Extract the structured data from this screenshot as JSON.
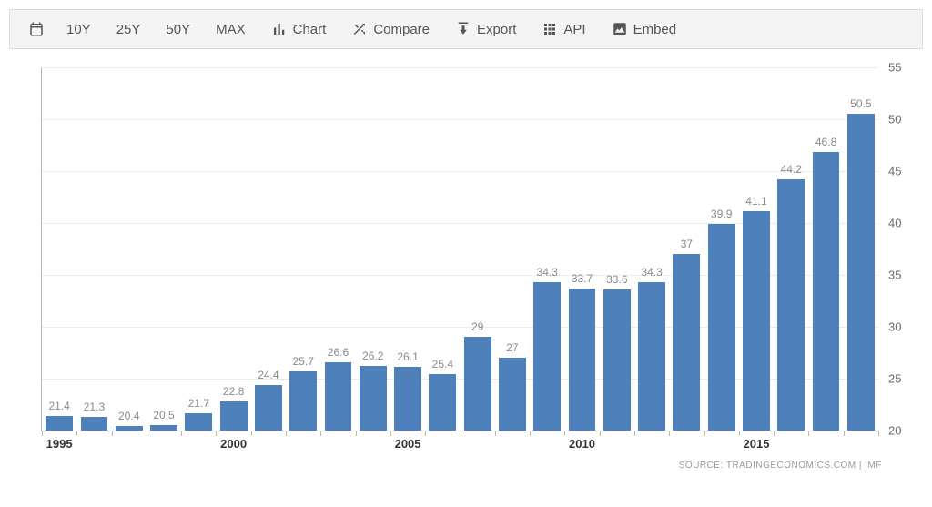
{
  "toolbar": {
    "ranges": [
      "10Y",
      "25Y",
      "50Y",
      "MAX"
    ],
    "actions": [
      {
        "label": "Chart",
        "icon": "chart"
      },
      {
        "label": "Compare",
        "icon": "compare"
      },
      {
        "label": "Export",
        "icon": "export"
      },
      {
        "label": "API",
        "icon": "api"
      },
      {
        "label": "Embed",
        "icon": "embed"
      }
    ]
  },
  "chart": {
    "type": "bar",
    "bar_color": "#4e81bc",
    "background_color": "#ffffff",
    "grid_color": "#ececec",
    "axis_color": "#b8b8b8",
    "label_color": "#8a8a8a",
    "label_fontsize": 12,
    "tick_color": "#6a6a6a",
    "tick_fontsize": 13,
    "xtick_fontweight": "bold",
    "xtick_color": "#333333",
    "bar_width_ratio": 0.78,
    "ylim": [
      20,
      55
    ],
    "ytick_step": 5,
    "yticks": [
      20,
      25,
      30,
      35,
      40,
      45,
      50,
      55
    ],
    "start_year": 1995,
    "xticks": [
      1995,
      2000,
      2005,
      2010,
      2015
    ],
    "values": [
      21.4,
      21.3,
      20.4,
      20.5,
      21.7,
      22.8,
      24.4,
      25.7,
      26.6,
      26.2,
      26.1,
      25.4,
      29,
      27,
      34.3,
      33.7,
      33.6,
      34.3,
      37,
      39.9,
      41.1,
      44.2,
      46.8,
      50.5
    ],
    "source": "SOURCE: TRADINGECONOMICS.COM | IMF"
  }
}
